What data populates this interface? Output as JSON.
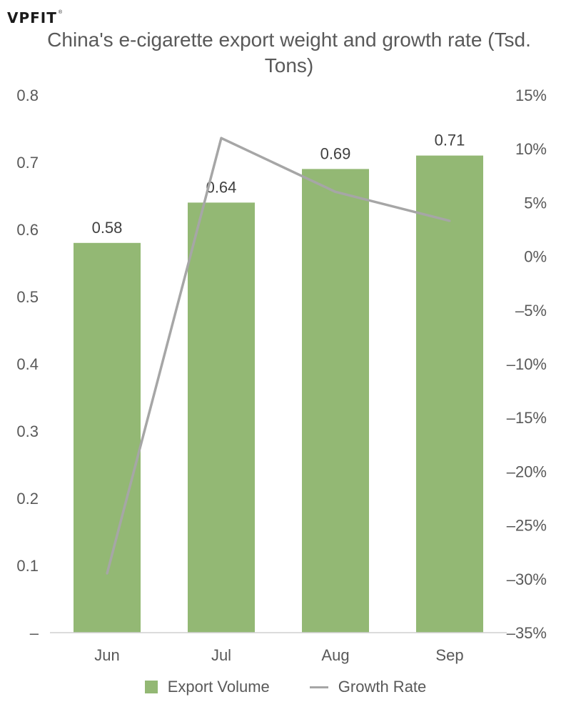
{
  "logo": {
    "text": "VPFIT",
    "reg": "®"
  },
  "colors": {
    "bar": "#93b874",
    "line": "#a6a6a6",
    "text": "#595959",
    "axis": "#d0d0d0"
  },
  "chart_data": {
    "type": "bar",
    "title": "China's e-cigarette export weight and growth rate (Tsd. Tons)",
    "categories": [
      "Jun",
      "Jul",
      "Aug",
      "Sep"
    ],
    "series": [
      {
        "name": "Export Volume",
        "type": "bar",
        "axis": "left",
        "values": [
          0.58,
          0.64,
          0.69,
          0.71
        ]
      },
      {
        "name": "Growth Rate",
        "type": "line",
        "axis": "right",
        "values": [
          -29.5,
          11,
          6,
          3.3
        ]
      }
    ],
    "data_labels": [
      "0.58",
      "0.64",
      "0.69",
      "0.71"
    ],
    "y_left": {
      "ylim": [
        0,
        0.8
      ],
      "ticks": [
        "–",
        "0.1",
        "0.2",
        "0.3",
        "0.4",
        "0.5",
        "0.6",
        "0.7",
        "0.8"
      ]
    },
    "y_right": {
      "ylim": [
        -35,
        15
      ],
      "ticks": [
        "–35%",
        "–30%",
        "–25%",
        "–20%",
        "–15%",
        "–10%",
        "–5%",
        "0%",
        "5%",
        "10%",
        "15%"
      ]
    },
    "grid": false,
    "legend_position": "bottom"
  }
}
